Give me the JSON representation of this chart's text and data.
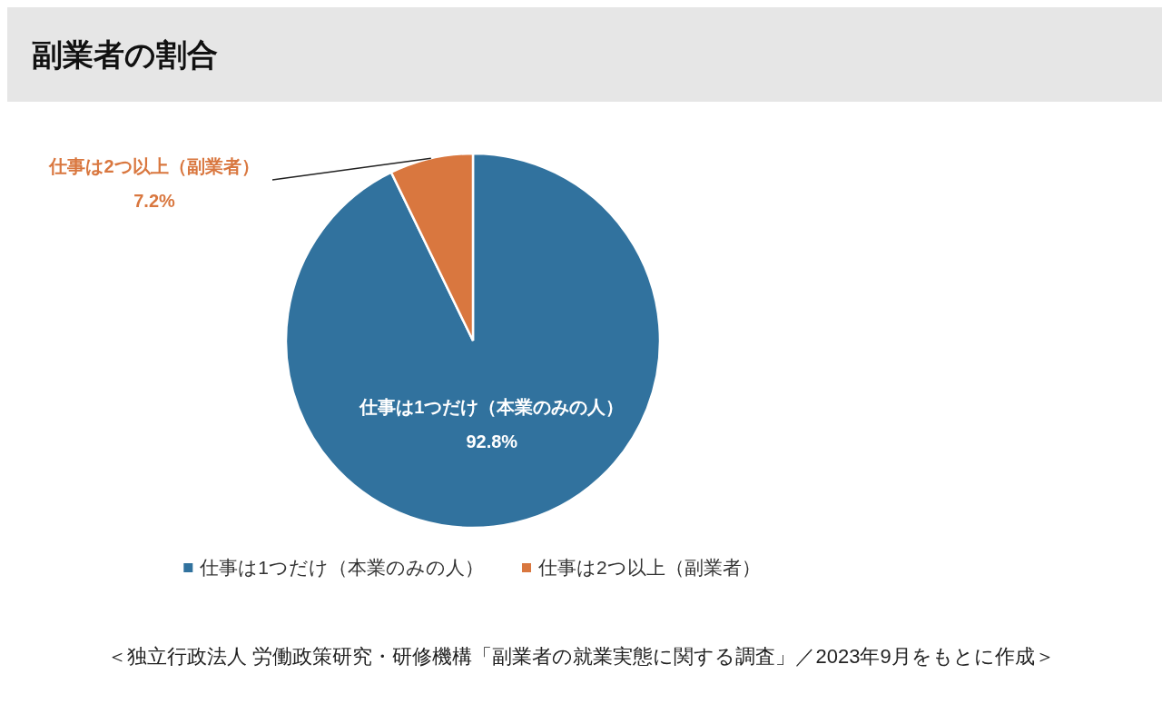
{
  "chart_data": {
    "type": "pie",
    "title": "副業者の割合",
    "categories": [
      "仕事は1つだけ（本業のみの人）",
      "仕事は2つ以上（副業者）"
    ],
    "values": [
      92.8,
      7.2
    ],
    "colors": [
      "#31729e",
      "#d9773f"
    ],
    "value_labels": [
      "92.8%",
      "7.2%"
    ],
    "legend": "bottom",
    "annotations": [
      "＜独立行政法人 労働政策研究・研修機構「副業者の就業実態に関する調査」／2023年9月をもとに作成＞"
    ]
  }
}
